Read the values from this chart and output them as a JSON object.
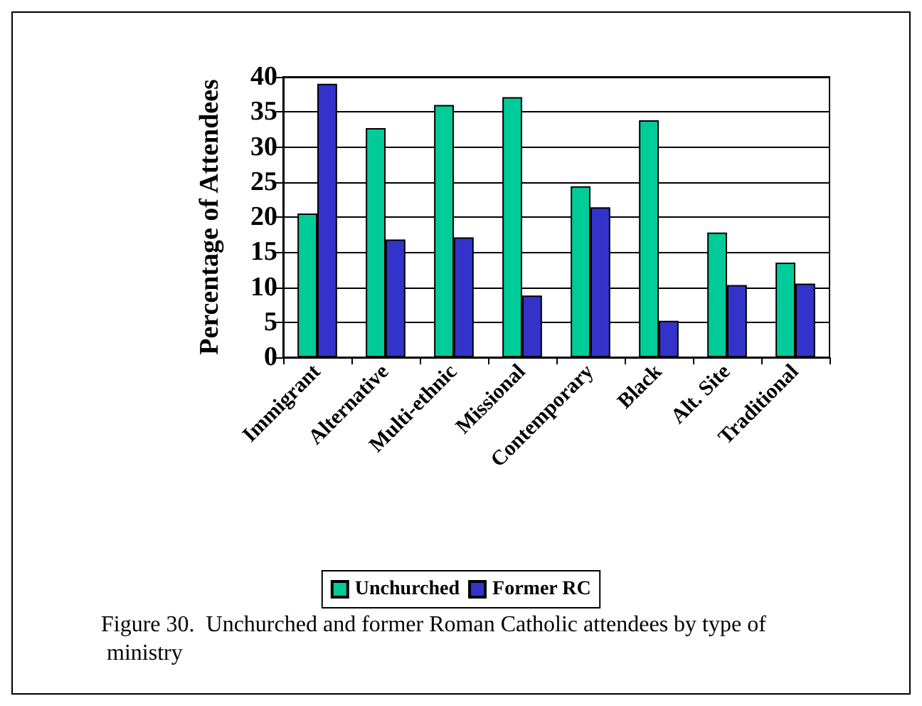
{
  "chart_data": {
    "type": "bar",
    "ylabel": "Percentage of Attendees",
    "categories": [
      "Immigrant",
      "Alternative",
      "Multi-ethnic",
      "Missional",
      "Contemporary",
      "Black",
      "Alt. Site",
      "Traditional"
    ],
    "series": [
      {
        "name": "Unchurched",
        "color": "#00cc99",
        "values": [
          20.5,
          32.7,
          36,
          37.1,
          24.4,
          33.8,
          17.8,
          13.5
        ]
      },
      {
        "name": "Former RC",
        "color": "#3333cc",
        "values": [
          39,
          16.8,
          17.1,
          8.8,
          21.4,
          5.2,
          10.3,
          10.5
        ]
      }
    ],
    "ylim": [
      0,
      40
    ],
    "yticks": [
      0,
      5,
      10,
      15,
      20,
      25,
      30,
      35,
      40
    ],
    "grid": "y",
    "legend": "bottom",
    "annotations": [
      "Figure 30.  Unchurched and former Roman Catholic attendees by type of ministry"
    ]
  }
}
